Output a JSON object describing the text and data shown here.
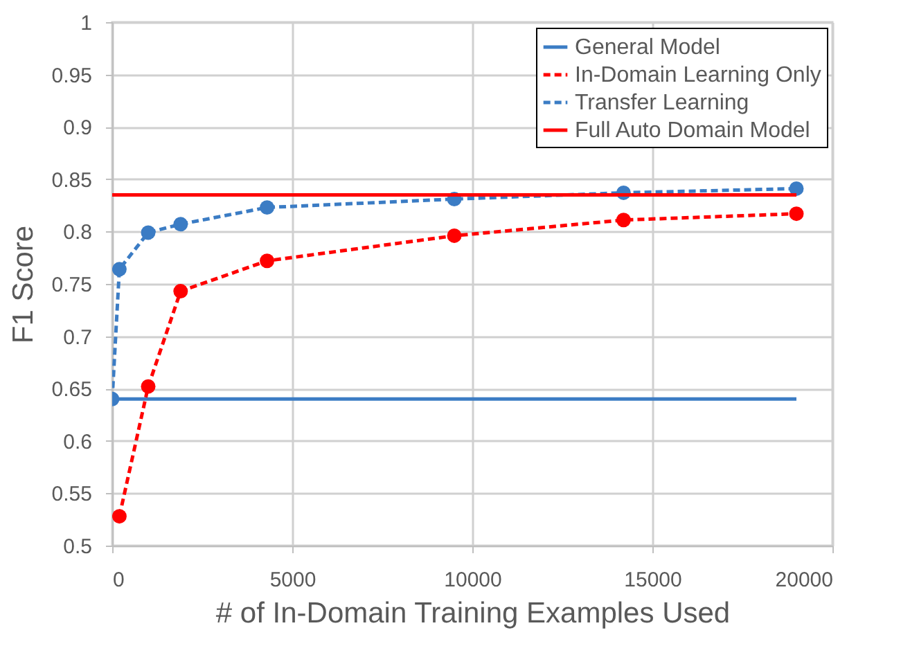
{
  "chart_data": {
    "type": "line",
    "xlabel": "# of In-Domain Training Examples Used",
    "ylabel": "F1 Score",
    "xlim": [
      0,
      20000
    ],
    "xticks": [
      0,
      5000,
      10000,
      15000,
      20000
    ],
    "ylim": [
      0.5,
      1
    ],
    "yticks": [
      0.5,
      0.55,
      0.6,
      0.65,
      0.7,
      0.75,
      0.8,
      0.85,
      0.9,
      0.95,
      1
    ],
    "grid": true,
    "legend": "top right",
    "series": [
      {
        "name": "General Model",
        "color": "#3b7cc4",
        "line_style": "solid",
        "x": [
          0,
          19000
        ],
        "values": [
          0.64,
          0.64
        ]
      },
      {
        "name": "In-Domain Learning Only",
        "color": "#ff0000",
        "line_style": "dashed",
        "marker": "circle",
        "x": [
          200,
          1000,
          1900,
          4300,
          9500,
          14200,
          19000
        ],
        "values": [
          0.528,
          0.652,
          0.743,
          0.772,
          0.796,
          0.811,
          0.817
        ]
      },
      {
        "name": "Transfer Learning",
        "color": "#3b7cc4",
        "line_style": "dashed",
        "marker": "circle",
        "x": [
          0,
          200,
          1000,
          1900,
          4300,
          9500,
          14200,
          19000
        ],
        "values": [
          0.64,
          0.764,
          0.799,
          0.807,
          0.823,
          0.831,
          0.837,
          0.841
        ]
      },
      {
        "name": "Full Auto Domain Model",
        "color": "#ff0000",
        "line_style": "solid",
        "x": [
          0,
          19000
        ],
        "values": [
          0.835,
          0.835
        ]
      }
    ]
  }
}
